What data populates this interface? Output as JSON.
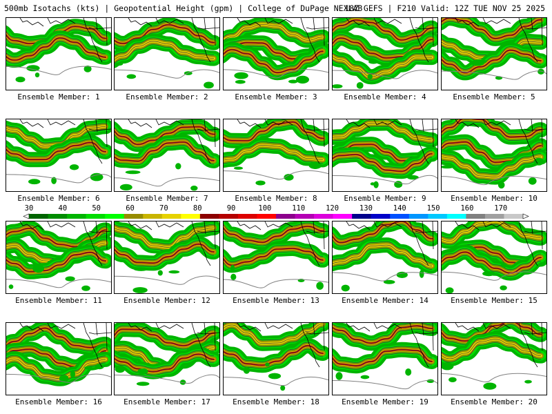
{
  "header": {
    "left": "500mb Isotachs (kts) | Geopotential Height (gpm) | College of DuPage NEXLAB",
    "right": "18Z GEFS | F210 Valid: 12Z TUE NOV 25 2025"
  },
  "caption_prefix": "Ensemble Member:",
  "members": [
    {
      "label": "Ensemble Member: 1"
    },
    {
      "label": "Ensemble Member: 2"
    },
    {
      "label": "Ensemble Member: 3"
    },
    {
      "label": "Ensemble Member: 4"
    },
    {
      "label": "Ensemble Member: 5"
    },
    {
      "label": "Ensemble Member: 6"
    },
    {
      "label": "Ensemble Member: 7"
    },
    {
      "label": "Ensemble Member: 8"
    },
    {
      "label": "Ensemble Member: 9"
    },
    {
      "label": "Ensemble Member: 10"
    },
    {
      "label": "Ensemble Member: 11"
    },
    {
      "label": "Ensemble Member: 12"
    },
    {
      "label": "Ensemble Member: 13"
    },
    {
      "label": "Ensemble Member: 14"
    },
    {
      "label": "Ensemble Member: 15"
    },
    {
      "label": "Ensemble Member: 16"
    },
    {
      "label": "Ensemble Member: 17"
    },
    {
      "label": "Ensemble Member: 18"
    },
    {
      "label": "Ensemble Member: 19"
    },
    {
      "label": "Ensemble Member: 20"
    }
  ],
  "scale": {
    "labels": [
      "30",
      "40",
      "50",
      "60",
      "70",
      "80",
      "90",
      "100",
      "110",
      "120",
      "130",
      "140",
      "150",
      "160",
      "170"
    ],
    "colors": [
      "#006400",
      "#008c00",
      "#00b400",
      "#00dc00",
      "#00ff00",
      "#968c00",
      "#c8b400",
      "#e6d200",
      "#ffff00",
      "#8c0000",
      "#b40000",
      "#dc0000",
      "#ff0000",
      "#8c008c",
      "#b400b4",
      "#dc00dc",
      "#ff00ff",
      "#00008c",
      "#0000c8",
      "#0050ff",
      "#0096ff",
      "#00c8ff",
      "#00ffff",
      "#808080",
      "#a0a0a0",
      "#c8c8c8"
    ]
  }
}
